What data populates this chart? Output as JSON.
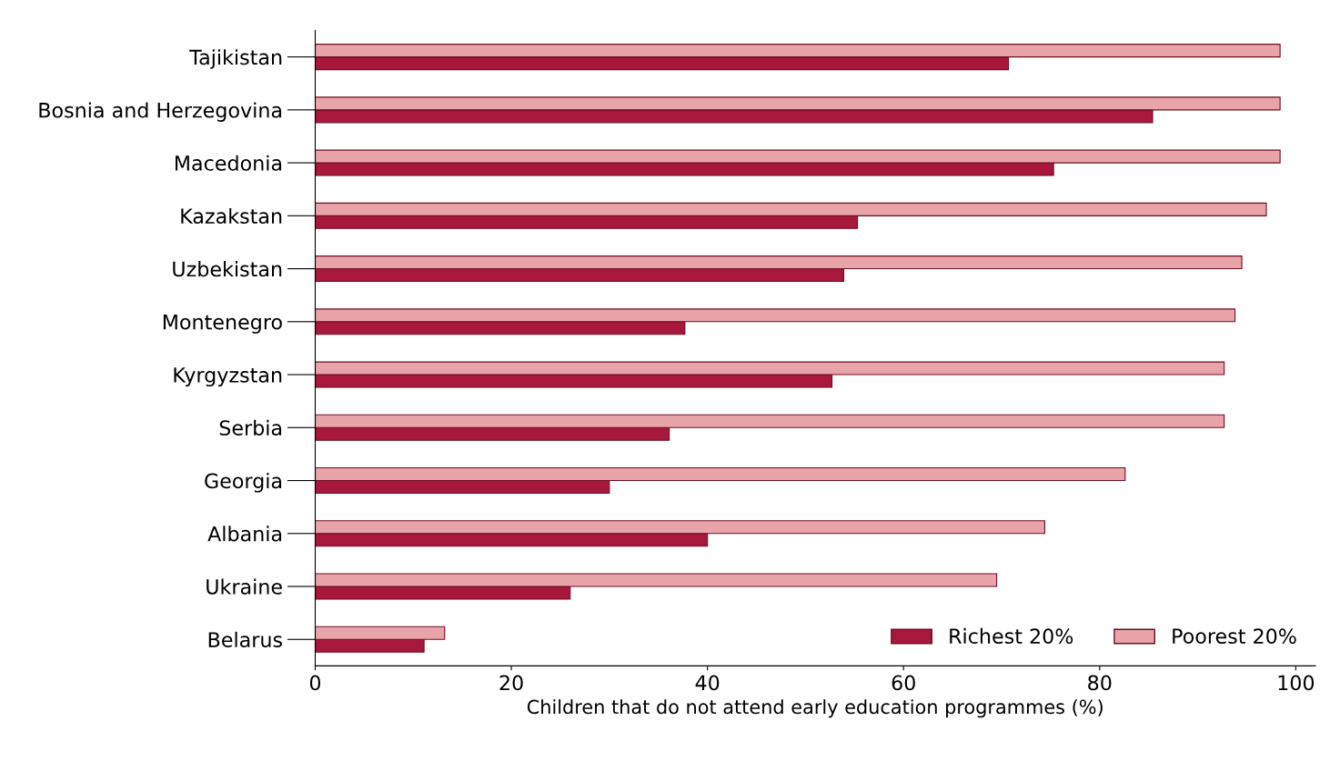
{
  "chart_data": {
    "type": "bar",
    "orientation": "horizontal",
    "xlabel": "Children that do not attend early education programmes (%)",
    "categories": [
      "Tajikistan",
      "Bosnia and Herzegovina",
      "Macedonia",
      "Kazakstan",
      "Uzbekistan",
      "Montenegro",
      "Kyrgyzstan",
      "Serbia",
      "Georgia",
      "Albania",
      "Ukraine",
      "Belarus"
    ],
    "series": [
      {
        "name": "Richest 20%",
        "color": "#a8173c",
        "values": [
          70.7,
          85.4,
          75.3,
          55.3,
          53.9,
          37.7,
          52.7,
          36.1,
          30.0,
          40.0,
          26.0,
          11.1
        ]
      },
      {
        "name": "Poorest 20%",
        "color": "#e8a4a8",
        "values": [
          98.4,
          98.4,
          98.4,
          97.0,
          94.5,
          93.8,
          92.7,
          92.7,
          82.6,
          74.4,
          69.5,
          13.2
        ]
      }
    ],
    "xlim": [
      0,
      102
    ],
    "xticks": [
      0,
      20,
      40,
      60,
      80,
      100
    ],
    "grid": false,
    "legend": "bottom right"
  }
}
